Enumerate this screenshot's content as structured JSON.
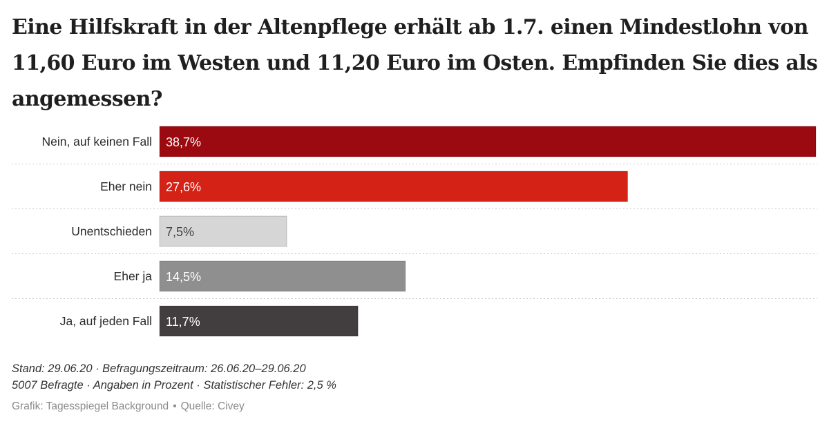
{
  "title": "Eine Hilfskraft in der Altenpflege erhält ab 1.7. einen Mindestlohn von 11,60 Euro im Westen und 11,20 Euro im Osten. Empfinden Sie dies als angemessen?",
  "chart_data": {
    "type": "bar",
    "orientation": "horizontal",
    "title": "Eine Hilfskraft in der Altenpflege erhält ab 1.7. einen Mindestlohn von 11,60 Euro im Westen und 11,20 Euro im Osten. Empfinden Sie dies als angemessen?",
    "categories": [
      "Nein, auf keinen Fall",
      "Eher nein",
      "Unentschieden",
      "Eher ja",
      "Ja, auf jeden Fall"
    ],
    "values": [
      38.7,
      27.6,
      7.5,
      14.5,
      11.7
    ],
    "value_labels": [
      "38,7%",
      "27,6%",
      "7,5%",
      "14,5%",
      "11,7%"
    ],
    "colors": [
      "#9b0a10",
      "#d42216",
      "#d6d6d6",
      "#8f8f8f",
      "#423e3f"
    ],
    "label_colors": [
      "#ffffff",
      "#ffffff",
      "#444444",
      "#ffffff",
      "#ffffff"
    ],
    "xlim": [
      0,
      38.7
    ],
    "xlabel": "",
    "ylabel": "",
    "grid": false
  },
  "footer": {
    "line1": "Stand: 29.06.20 · Befragungszeitraum: 26.06.20–29.06.20",
    "line2": "5007 Befragte · Angaben in Prozent · Statistischer Fehler: 2,5 %",
    "credit": "Grafik: Tagesspiegel Background",
    "separator": "•",
    "source": "Quelle: Civey"
  }
}
